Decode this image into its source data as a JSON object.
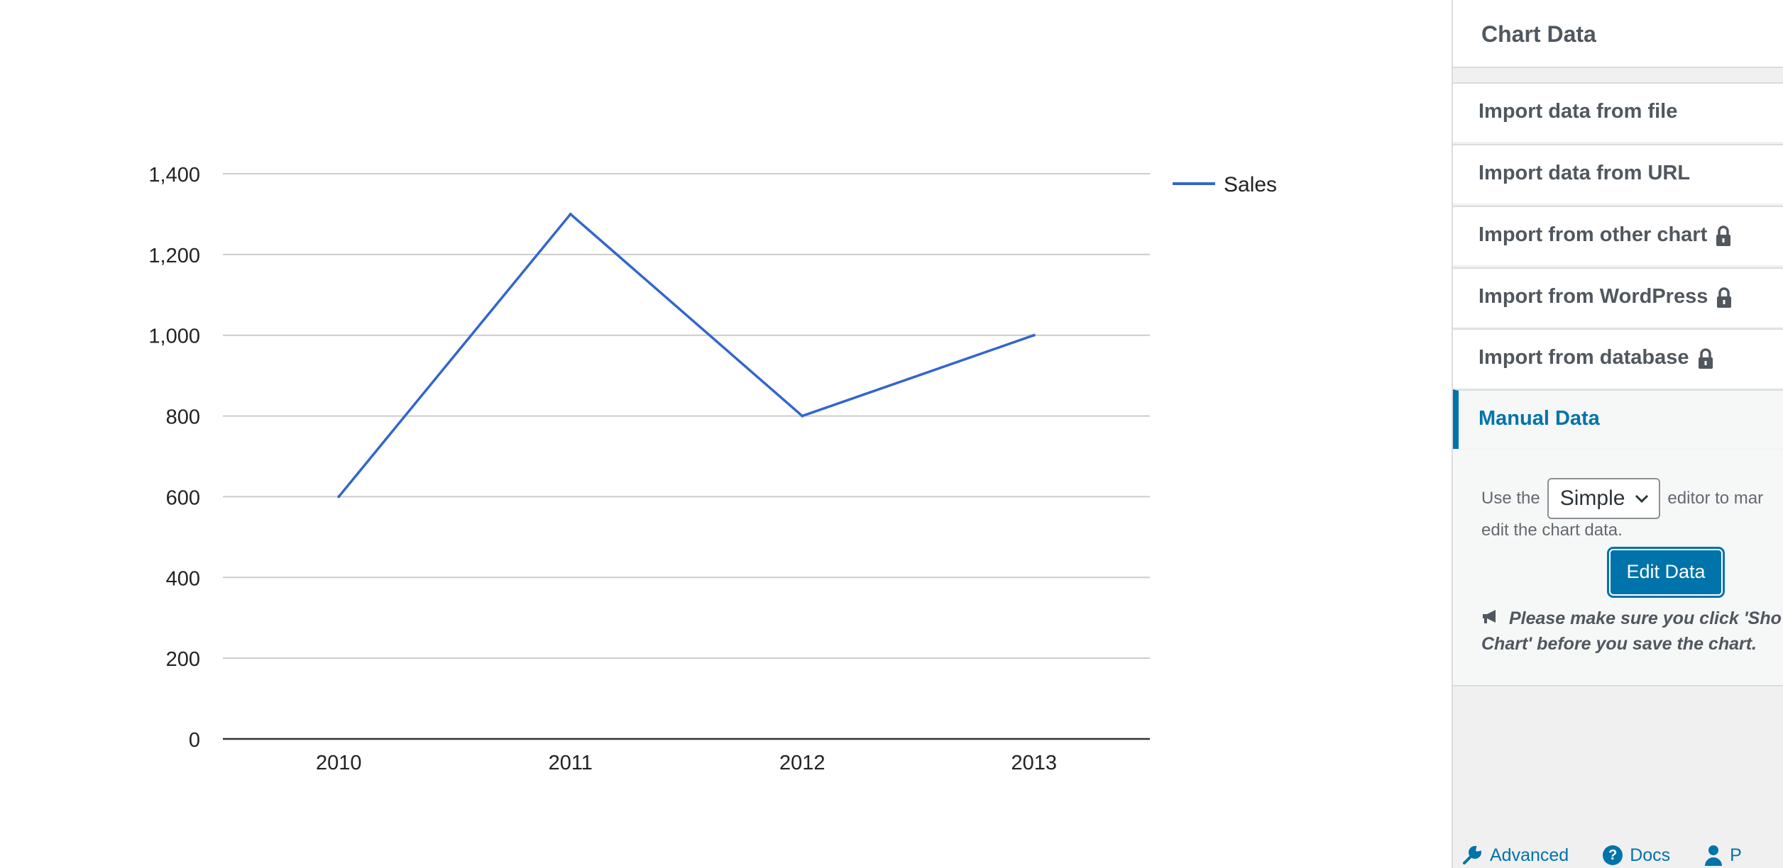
{
  "chart_data": {
    "type": "line",
    "categories": [
      "2010",
      "2011",
      "2012",
      "2013"
    ],
    "series": [
      {
        "name": "Sales",
        "values": [
          600,
          1300,
          800,
          1000
        ],
        "color": "#3366cc"
      }
    ],
    "ylim": [
      0,
      1400
    ],
    "yticks": [
      0,
      200,
      400,
      600,
      800,
      1000,
      1200,
      1400
    ],
    "ytick_labels": [
      "0",
      "200",
      "400",
      "600",
      "800",
      "1,000",
      "1,200",
      "1,400"
    ],
    "grid": true,
    "legend": "right"
  },
  "sidebar": {
    "title": "Chart Data",
    "items": [
      {
        "label": "Import data from file",
        "locked": false
      },
      {
        "label": "Import data from URL",
        "locked": false
      },
      {
        "label": "Import from other chart",
        "locked": true
      },
      {
        "label": "Import from WordPress",
        "locked": true
      },
      {
        "label": "Import from database",
        "locked": true
      },
      {
        "label": "Manual Data",
        "locked": false,
        "active": true
      }
    ],
    "manual": {
      "use_the": "Use the",
      "editor_select": "Simple",
      "editor_rest": "editor to mar",
      "line2": "edit the chart data.",
      "edit_button": "Edit Data",
      "note_line1": "Please make sure you click 'Sho",
      "note_line2": "Chart' before you save the chart."
    },
    "footer": {
      "advanced": "Advanced",
      "docs": "Docs",
      "third": "P"
    }
  },
  "colors": {
    "accent": "#0073aa",
    "series": "#3366cc",
    "lock_icon": "#50575e"
  }
}
